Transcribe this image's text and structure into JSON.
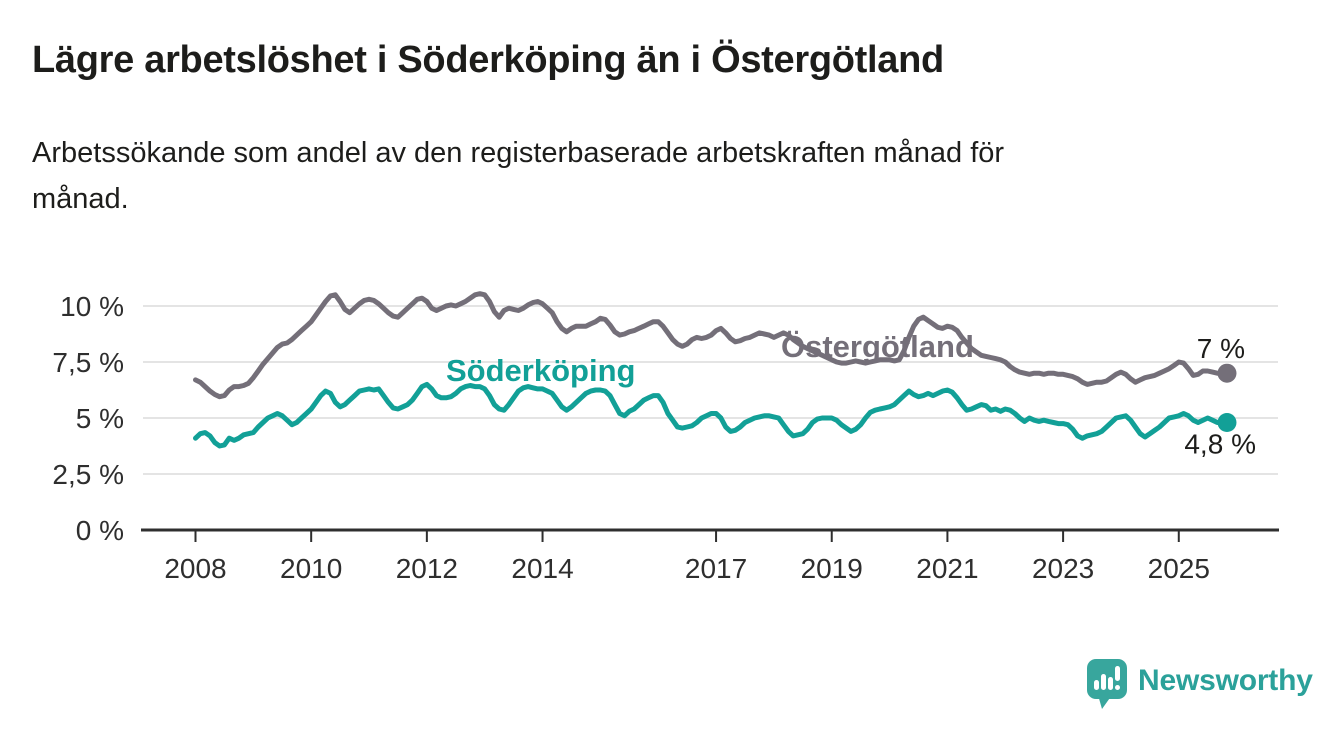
{
  "title": "Lägre arbetslöshet i Söderköping än i Östergötland",
  "subtitle_lines": [
    "Arbetssökande som andel av den registerbaserade arbetskraften månad för",
    "månad."
  ],
  "branding": {
    "logo_text": "Newsworthy",
    "logo_icon": "speech-bubble-bar-chart-icon"
  },
  "colors": {
    "teal": "#12a097",
    "gray": "#746f79",
    "text": "#1d1d1b",
    "axis_text": "#2e2e2e",
    "gridline": "#dcdcdc",
    "axis_line": "#2f2f2f",
    "logo_bubble": "#38a69d",
    "logo_text": "#2ba19a",
    "background": "#ffffff"
  },
  "chart_data": {
    "type": "line",
    "frequency": "monthly",
    "start": "2008-01",
    "end": "2025-11",
    "unit": "%",
    "grid": "horizontal",
    "y_axis": {
      "tick_values": [
        0,
        2.5,
        5,
        7.5,
        10
      ],
      "tick_labels": [
        "0 %",
        "2,5 %",
        "5 %",
        "7,5 %",
        "10 %"
      ],
      "range": [
        0,
        11.2
      ]
    },
    "x_axis": {
      "tick_years": [
        2008,
        2010,
        2012,
        2014,
        2017,
        2019,
        2021,
        2023,
        2025
      ]
    },
    "series": [
      {
        "name": "Söderköping",
        "color": "#12a097",
        "end_label": "4,8 %",
        "end_value": 4.8,
        "values": [
          4.1,
          4.3,
          4.35,
          4.2,
          3.9,
          3.75,
          3.8,
          4.1,
          4.0,
          4.1,
          4.25,
          4.3,
          4.35,
          4.6,
          4.8,
          5.0,
          5.1,
          5.2,
          5.1,
          4.9,
          4.7,
          4.8,
          5.0,
          5.2,
          5.4,
          5.7,
          6.0,
          6.2,
          6.1,
          5.7,
          5.5,
          5.6,
          5.8,
          6.0,
          6.2,
          6.25,
          6.3,
          6.25,
          6.3,
          6.0,
          5.7,
          5.45,
          5.4,
          5.5,
          5.6,
          5.8,
          6.1,
          6.4,
          6.5,
          6.3,
          6.0,
          5.9,
          5.9,
          5.95,
          6.1,
          6.3,
          6.4,
          6.45,
          6.4,
          6.4,
          6.3,
          6.0,
          5.6,
          5.4,
          5.35,
          5.6,
          5.9,
          6.2,
          6.35,
          6.4,
          6.35,
          6.3,
          6.3,
          6.2,
          6.1,
          5.8,
          5.5,
          5.35,
          5.5,
          5.7,
          5.9,
          6.1,
          6.2,
          6.25,
          6.25,
          6.2,
          6.0,
          5.6,
          5.2,
          5.1,
          5.3,
          5.4,
          5.6,
          5.8,
          5.9,
          6.0,
          6.0,
          5.7,
          5.2,
          4.9,
          4.6,
          4.55,
          4.6,
          4.65,
          4.8,
          5.0,
          5.1,
          5.2,
          5.2,
          5.0,
          4.6,
          4.4,
          4.45,
          4.6,
          4.8,
          4.9,
          5.0,
          5.05,
          5.1,
          5.1,
          5.05,
          5.0,
          4.7,
          4.4,
          4.2,
          4.25,
          4.3,
          4.5,
          4.8,
          4.95,
          5.0,
          5.0,
          5.0,
          4.9,
          4.7,
          4.55,
          4.4,
          4.5,
          4.7,
          5.0,
          5.25,
          5.35,
          5.4,
          5.45,
          5.5,
          5.6,
          5.8,
          6.0,
          6.2,
          6.05,
          5.95,
          6.0,
          6.1,
          6.0,
          6.1,
          6.2,
          6.25,
          6.15,
          5.9,
          5.6,
          5.35,
          5.4,
          5.5,
          5.6,
          5.55,
          5.35,
          5.4,
          5.3,
          5.4,
          5.35,
          5.2,
          5.0,
          4.85,
          5.0,
          4.9,
          4.85,
          4.9,
          4.85,
          4.8,
          4.75,
          4.75,
          4.7,
          4.5,
          4.2,
          4.1,
          4.2,
          4.25,
          4.3,
          4.4,
          4.6,
          4.8,
          5.0,
          5.05,
          5.1,
          4.9,
          4.6,
          4.3,
          4.15,
          4.3,
          4.45,
          4.6,
          4.8,
          5.0,
          5.05,
          5.1,
          5.2,
          5.1,
          4.9,
          4.8,
          4.9,
          5.0,
          4.9,
          4.8,
          4.8,
          4.8
        ]
      },
      {
        "name": "Östergötland",
        "color": "#746f79",
        "end_label": "7 %",
        "end_value": 7.0,
        "values": [
          6.7,
          6.6,
          6.4,
          6.2,
          6.05,
          5.95,
          6.0,
          6.25,
          6.4,
          6.4,
          6.45,
          6.55,
          6.8,
          7.1,
          7.4,
          7.65,
          7.9,
          8.15,
          8.3,
          8.35,
          8.5,
          8.7,
          8.9,
          9.1,
          9.3,
          9.6,
          9.9,
          10.2,
          10.45,
          10.5,
          10.2,
          9.85,
          9.7,
          9.9,
          10.1,
          10.25,
          10.3,
          10.25,
          10.1,
          9.9,
          9.7,
          9.55,
          9.5,
          9.7,
          9.9,
          10.1,
          10.3,
          10.35,
          10.2,
          9.9,
          9.8,
          9.9,
          10.0,
          10.05,
          10.0,
          10.1,
          10.2,
          10.35,
          10.5,
          10.55,
          10.5,
          10.2,
          9.75,
          9.5,
          9.8,
          9.9,
          9.85,
          9.8,
          9.9,
          10.05,
          10.15,
          10.2,
          10.1,
          9.9,
          9.7,
          9.3,
          9.0,
          8.85,
          9.0,
          9.1,
          9.1,
          9.1,
          9.2,
          9.3,
          9.45,
          9.4,
          9.15,
          8.85,
          8.7,
          8.75,
          8.85,
          8.9,
          9.0,
          9.1,
          9.2,
          9.3,
          9.3,
          9.1,
          8.8,
          8.5,
          8.3,
          8.2,
          8.3,
          8.5,
          8.6,
          8.55,
          8.6,
          8.7,
          8.9,
          9.0,
          8.8,
          8.55,
          8.4,
          8.45,
          8.55,
          8.6,
          8.7,
          8.8,
          8.75,
          8.7,
          8.6,
          8.7,
          8.8,
          8.7,
          8.5,
          8.35,
          8.2,
          8.1,
          8.0,
          7.9,
          7.8,
          7.7,
          7.6,
          7.5,
          7.45,
          7.45,
          7.5,
          7.55,
          7.5,
          7.45,
          7.5,
          7.55,
          7.6,
          7.6,
          7.6,
          7.55,
          7.6,
          8.0,
          8.6,
          9.1,
          9.4,
          9.5,
          9.35,
          9.2,
          9.05,
          9.0,
          9.1,
          9.05,
          8.9,
          8.6,
          8.35,
          8.1,
          7.95,
          7.8,
          7.75,
          7.7,
          7.65,
          7.6,
          7.5,
          7.3,
          7.15,
          7.05,
          7.0,
          6.95,
          7.0,
          7.0,
          6.95,
          7.0,
          7.0,
          6.95,
          6.95,
          6.9,
          6.85,
          6.75,
          6.6,
          6.5,
          6.55,
          6.6,
          6.6,
          6.65,
          6.8,
          6.95,
          7.05,
          6.95,
          6.75,
          6.6,
          6.7,
          6.8,
          6.85,
          6.9,
          7.0,
          7.1,
          7.2,
          7.35,
          7.5,
          7.45,
          7.2,
          6.9,
          6.95,
          7.1,
          7.1,
          7.05,
          7.0,
          7.0,
          7.0
        ]
      }
    ]
  }
}
